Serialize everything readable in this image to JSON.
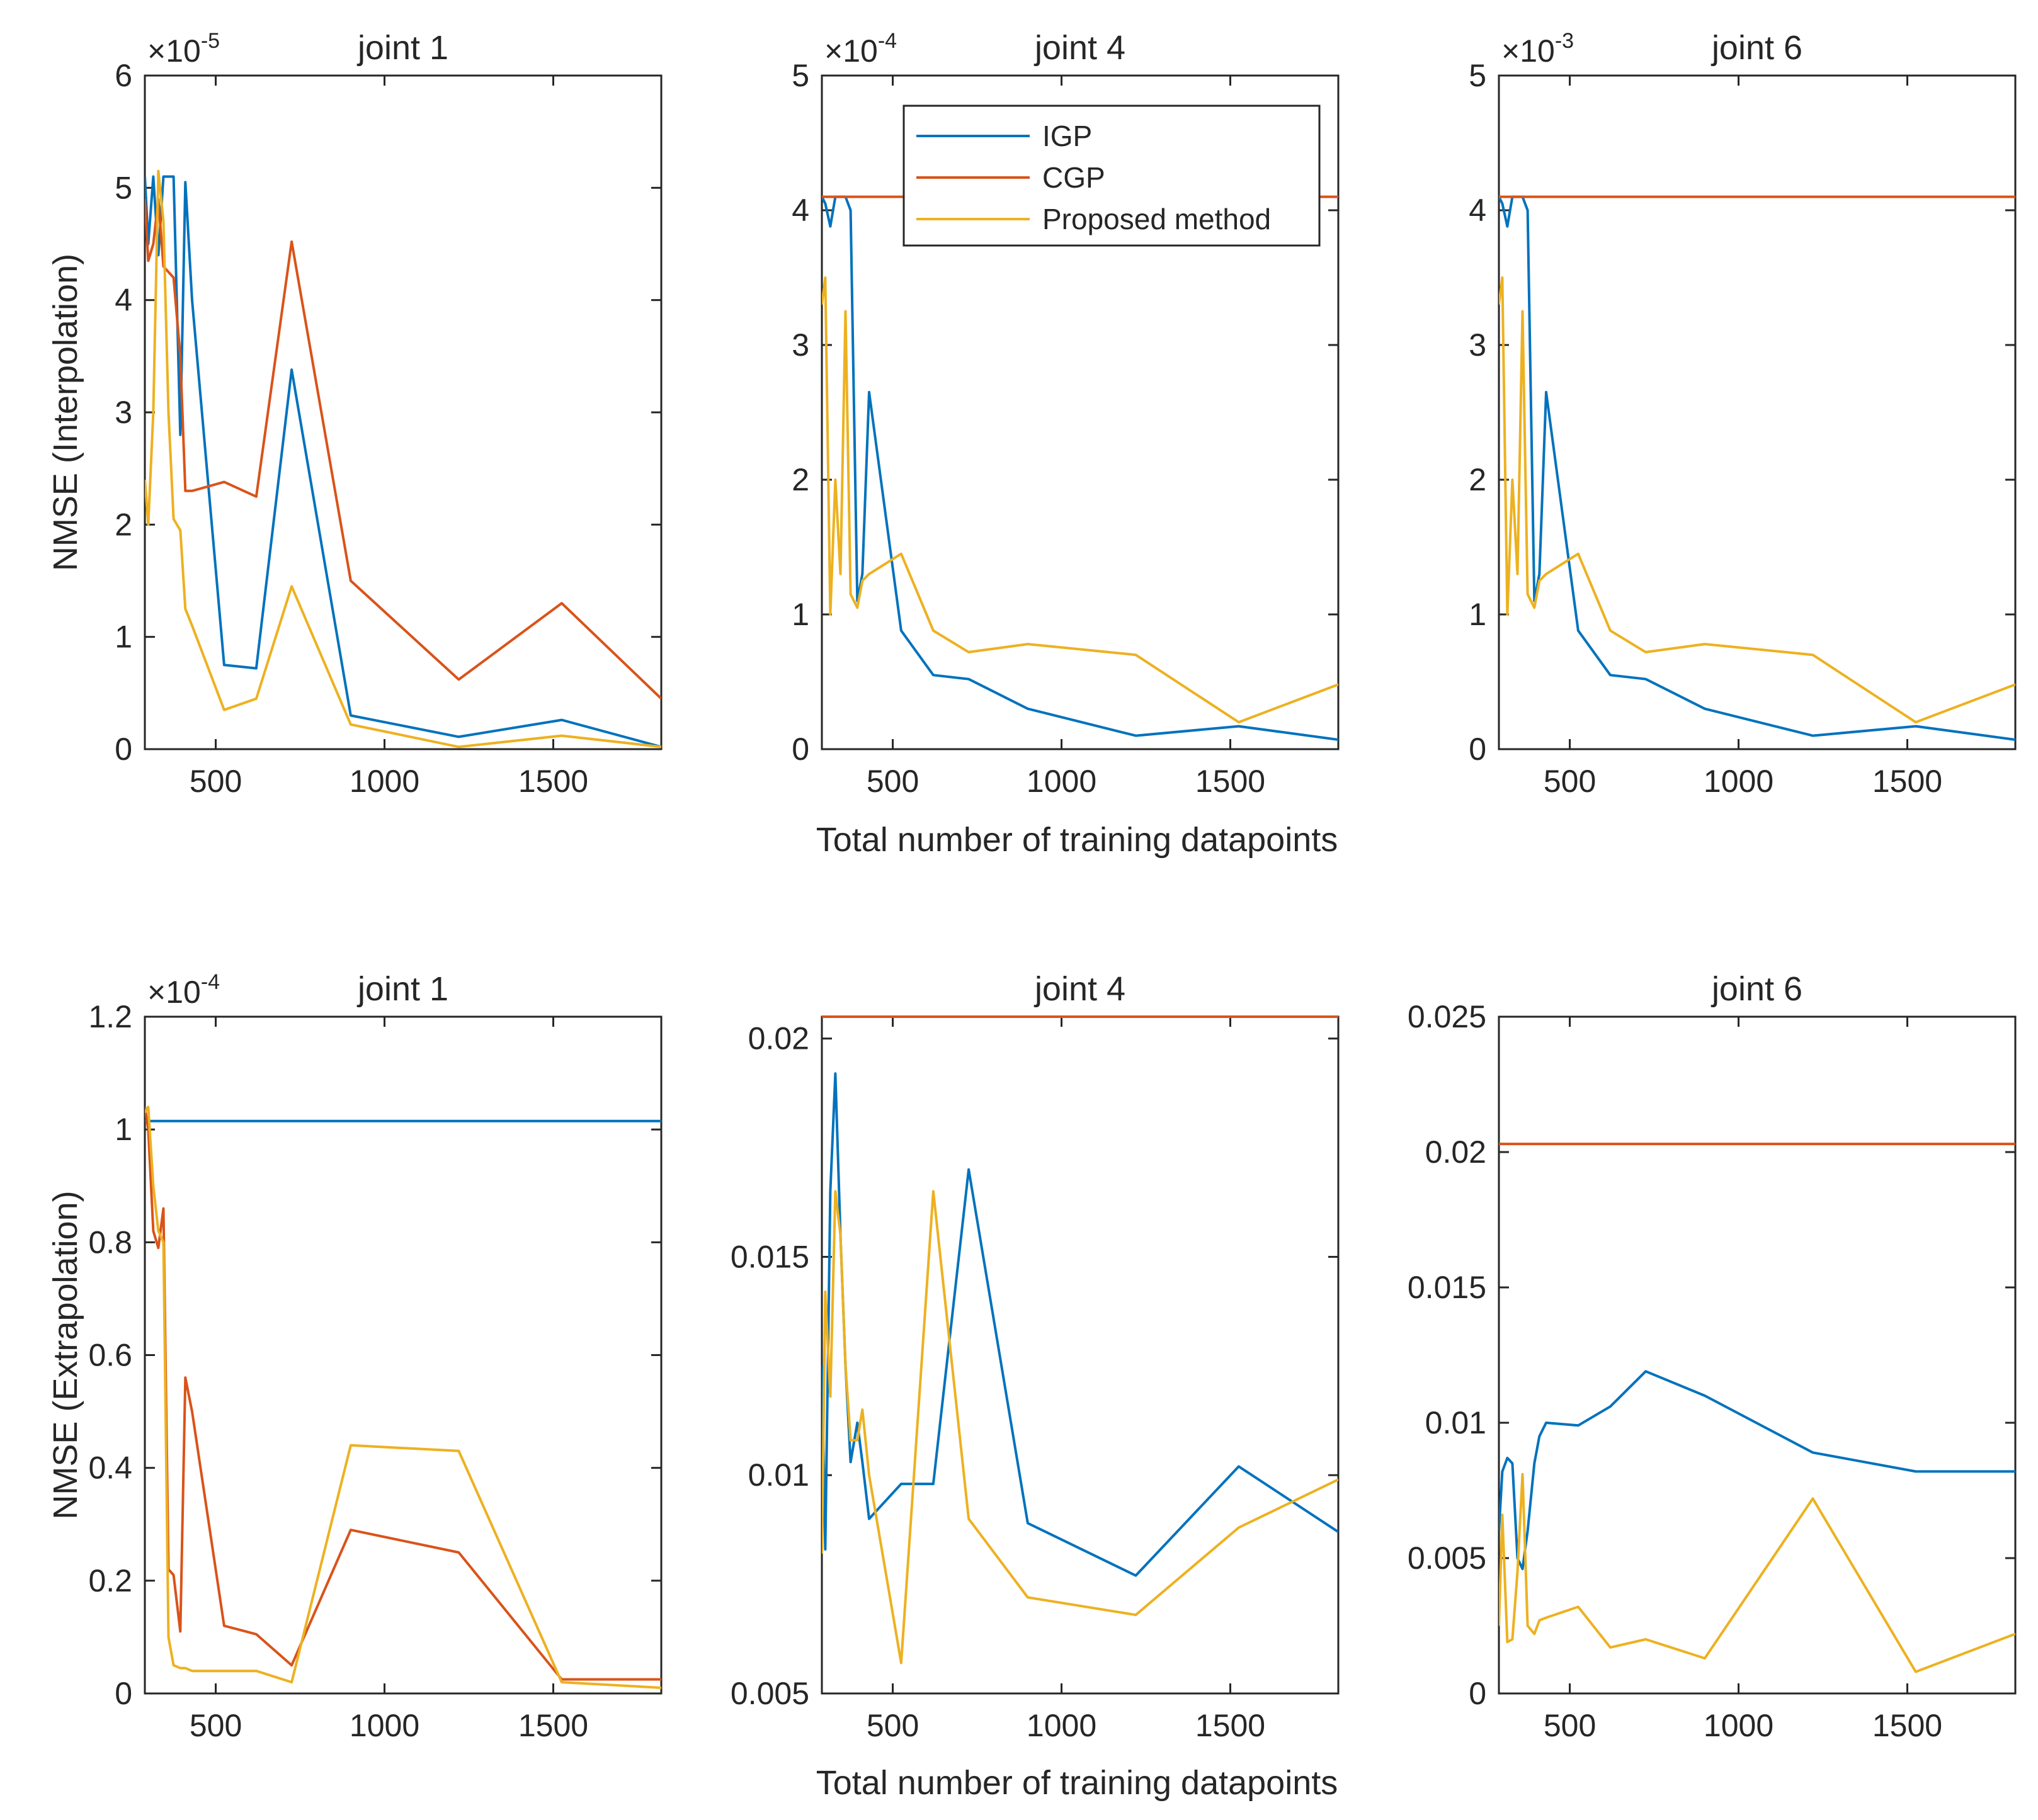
{
  "figure": {
    "shared_xlabel_top": "Total number of training datapoints",
    "shared_xlabel_bottom": "Total number of training datapoints",
    "colors": {
      "IGP": "#0072BD",
      "CGP": "#D95319",
      "Proposed method": "#EDB120"
    },
    "legend": [
      "IGP",
      "CGP",
      "Proposed method"
    ]
  },
  "chart_data": [
    {
      "type": "line",
      "title": "joint 1",
      "ylabel": "NMSE (Interpolation)",
      "xlabel": "",
      "xlim": [
        290,
        1820
      ],
      "ylim": [
        0,
        6
      ],
      "multiplier": "×10",
      "multiplier_exp": "-5",
      "xticks": [
        500,
        1000,
        1500
      ],
      "xtick_labels": [
        "500",
        "1000",
        "1500"
      ],
      "yticks": [
        0,
        1,
        2,
        3,
        4,
        5,
        6
      ],
      "ytick_labels": [
        "0",
        "1",
        "2",
        "3",
        "4",
        "5",
        "6"
      ],
      "series": [
        {
          "name": "IGP",
          "x": [
            290,
            300,
            315,
            330,
            345,
            360,
            375,
            395,
            410,
            430,
            525,
            620,
            725,
            900,
            1220,
            1525,
            1820
          ],
          "y": [
            5.1,
            4.5,
            5.1,
            4.4,
            5.1,
            5.1,
            5.1,
            2.8,
            5.05,
            4.0,
            0.75,
            0.72,
            3.38,
            0.3,
            0.11,
            0.26,
            0.02
          ]
        },
        {
          "name": "CGP",
          "x": [
            290,
            300,
            315,
            330,
            345,
            360,
            375,
            395,
            410,
            430,
            525,
            620,
            725,
            900,
            1220,
            1525,
            1820
          ],
          "y": [
            4.9,
            4.35,
            4.5,
            4.9,
            4.3,
            4.25,
            4.2,
            3.5,
            2.3,
            2.3,
            2.38,
            2.25,
            4.52,
            1.5,
            0.62,
            1.3,
            0.45
          ]
        },
        {
          "name": "Proposed method",
          "x": [
            290,
            300,
            315,
            330,
            345,
            360,
            375,
            395,
            410,
            430,
            525,
            620,
            725,
            900,
            1220,
            1525,
            1820
          ],
          "y": [
            2.4,
            2.0,
            3.0,
            5.15,
            4.7,
            3.0,
            2.05,
            1.95,
            1.25,
            1.1,
            0.35,
            0.45,
            1.45,
            0.22,
            0.02,
            0.12,
            0.02
          ]
        }
      ],
      "legend": false
    },
    {
      "type": "line",
      "title": "joint 4",
      "ylabel": "",
      "xlabel": "",
      "xlim": [
        290,
        1820
      ],
      "ylim": [
        0,
        5
      ],
      "multiplier": "×10",
      "multiplier_exp": "-4",
      "xticks": [
        500,
        1000,
        1500
      ],
      "xtick_labels": [
        "500",
        "1000",
        "1500"
      ],
      "yticks": [
        0,
        1,
        2,
        3,
        4,
        5
      ],
      "ytick_labels": [
        "0",
        "1",
        "2",
        "3",
        "4",
        "5"
      ],
      "series": [
        {
          "name": "IGP",
          "x": [
            290,
            300,
            315,
            330,
            345,
            360,
            375,
            395,
            410,
            430,
            525,
            620,
            725,
            900,
            1220,
            1525,
            1820
          ],
          "y": [
            4.1,
            4.05,
            3.88,
            4.1,
            4.1,
            4.1,
            4.0,
            1.1,
            1.3,
            2.65,
            0.88,
            0.55,
            0.52,
            0.3,
            0.1,
            0.17,
            0.07
          ]
        },
        {
          "name": "CGP",
          "x": [
            290,
            1820
          ],
          "y": [
            4.1,
            4.1
          ]
        },
        {
          "name": "Proposed method",
          "x": [
            290,
            300,
            315,
            330,
            345,
            360,
            375,
            395,
            410,
            430,
            525,
            620,
            725,
            900,
            1220,
            1525,
            1820
          ],
          "y": [
            3.3,
            3.5,
            1.0,
            2.0,
            1.3,
            3.25,
            1.15,
            1.05,
            1.25,
            1.3,
            1.45,
            0.88,
            0.72,
            0.78,
            0.7,
            0.2,
            0.48
          ]
        }
      ],
      "legend": true
    },
    {
      "type": "line",
      "title": "joint 6",
      "ylabel": "",
      "xlabel": "",
      "xlim": [
        290,
        1820
      ],
      "ylim": [
        0,
        5
      ],
      "multiplier": "×10",
      "multiplier_exp": "-3",
      "xticks": [
        500,
        1000,
        1500
      ],
      "xtick_labels": [
        "500",
        "1000",
        "1500"
      ],
      "yticks": [
        0,
        1,
        2,
        3,
        4,
        5
      ],
      "ytick_labels": [
        "0",
        "1",
        "2",
        "3",
        "4",
        "5"
      ],
      "series": [
        {
          "name": "IGP",
          "x": [
            290,
            300,
            315,
            330,
            345,
            360,
            375,
            395,
            410,
            430,
            525,
            620,
            725,
            900,
            1220,
            1525,
            1820
          ],
          "y": [
            4.1,
            4.05,
            3.88,
            4.1,
            4.1,
            4.1,
            4.0,
            1.1,
            1.3,
            2.65,
            0.88,
            0.55,
            0.52,
            0.3,
            0.1,
            0.17,
            0.07
          ]
        },
        {
          "name": "CGP",
          "x": [
            290,
            1820
          ],
          "y": [
            4.1,
            4.1
          ]
        },
        {
          "name": "Proposed method",
          "x": [
            290,
            300,
            315,
            330,
            345,
            360,
            375,
            395,
            410,
            430,
            525,
            620,
            725,
            900,
            1220,
            1525,
            1820
          ],
          "y": [
            3.3,
            3.5,
            1.0,
            2.0,
            1.3,
            3.25,
            1.15,
            1.05,
            1.25,
            1.3,
            1.45,
            0.88,
            0.72,
            0.78,
            0.7,
            0.2,
            0.48
          ]
        }
      ],
      "legend": false
    },
    {
      "type": "line",
      "title": "joint 1",
      "ylabel": "NMSE (Extrapolation)",
      "xlabel": "",
      "xlim": [
        290,
        1820
      ],
      "ylim": [
        0,
        1.2
      ],
      "multiplier": "×10",
      "multiplier_exp": "-4",
      "xticks": [
        500,
        1000,
        1500
      ],
      "xtick_labels": [
        "500",
        "1000",
        "1500"
      ],
      "yticks": [
        0,
        0.2,
        0.4,
        0.6,
        0.8,
        1,
        1.2
      ],
      "ytick_labels": [
        "0",
        "0.2",
        "0.4",
        "0.6",
        "0.8",
        "1",
        "1.2"
      ],
      "series": [
        {
          "name": "IGP",
          "x": [
            290,
            1820
          ],
          "y": [
            1.015,
            1.015
          ]
        },
        {
          "name": "CGP",
          "x": [
            290,
            300,
            315,
            330,
            345,
            360,
            375,
            395,
            410,
            430,
            525,
            620,
            725,
            900,
            1220,
            1525,
            1820
          ],
          "y": [
            1.04,
            1.0,
            0.82,
            0.79,
            0.86,
            0.22,
            0.21,
            0.11,
            0.56,
            0.5,
            0.12,
            0.105,
            0.05,
            0.29,
            0.25,
            0.025,
            0.025
          ]
        },
        {
          "name": "Proposed method",
          "x": [
            290,
            300,
            315,
            330,
            345,
            360,
            375,
            395,
            410,
            430,
            525,
            620,
            725,
            900,
            1220,
            1525,
            1820
          ],
          "y": [
            1.03,
            1.04,
            0.9,
            0.82,
            0.8,
            0.1,
            0.05,
            0.045,
            0.045,
            0.04,
            0.04,
            0.04,
            0.02,
            0.44,
            0.43,
            0.02,
            0.01
          ]
        }
      ],
      "legend": false
    },
    {
      "type": "line",
      "title": "joint 4",
      "ylabel": "",
      "xlabel": "",
      "xlim": [
        290,
        1820
      ],
      "ylim": [
        0.005,
        0.0205
      ],
      "multiplier": "",
      "multiplier_exp": "",
      "xticks": [
        500,
        1000,
        1500
      ],
      "xtick_labels": [
        "500",
        "1000",
        "1500"
      ],
      "yticks": [
        0.005,
        0.01,
        0.015,
        0.02
      ],
      "ytick_labels": [
        "0.005",
        "0.01",
        "0.015",
        "0.02"
      ],
      "series": [
        {
          "name": "IGP",
          "x": [
            290,
            300,
            315,
            330,
            345,
            360,
            375,
            395,
            410,
            430,
            525,
            620,
            725,
            900,
            1220,
            1525,
            1820
          ],
          "y": [
            0.0125,
            0.0083,
            0.0165,
            0.0192,
            0.0155,
            0.0125,
            0.0103,
            0.0112,
            0.0103,
            0.009,
            0.0098,
            0.0098,
            0.017,
            0.0089,
            0.0077,
            0.0102,
            0.0087
          ]
        },
        {
          "name": "CGP",
          "x": [
            290,
            1820
          ],
          "y": [
            0.0205,
            0.0205
          ]
        },
        {
          "name": "Proposed method",
          "x": [
            290,
            300,
            315,
            330,
            345,
            360,
            375,
            395,
            410,
            430,
            525,
            620,
            725,
            900,
            1220,
            1525,
            1820
          ],
          "y": [
            0.0082,
            0.0142,
            0.0118,
            0.0165,
            0.0155,
            0.0125,
            0.0108,
            0.0108,
            0.0115,
            0.01,
            0.0057,
            0.0165,
            0.009,
            0.0072,
            0.0068,
            0.0088,
            0.0099
          ]
        }
      ],
      "legend": false
    },
    {
      "type": "line",
      "title": "joint 6",
      "ylabel": "",
      "xlabel": "",
      "xlim": [
        290,
        1820
      ],
      "ylim": [
        0,
        0.025
      ],
      "multiplier": "",
      "multiplier_exp": "",
      "xticks": [
        500,
        1000,
        1500
      ],
      "xtick_labels": [
        "500",
        "1000",
        "1500"
      ],
      "yticks": [
        0,
        0.005,
        0.01,
        0.015,
        0.02,
        0.025
      ],
      "ytick_labels": [
        "0",
        "0.005",
        "0.01",
        "0.015",
        "0.02",
        "0.025"
      ],
      "series": [
        {
          "name": "IGP",
          "x": [
            290,
            300,
            315,
            330,
            345,
            360,
            375,
            395,
            410,
            430,
            525,
            620,
            725,
            900,
            1220,
            1525,
            1820
          ],
          "y": [
            0.006,
            0.0082,
            0.0087,
            0.0085,
            0.005,
            0.0046,
            0.006,
            0.0085,
            0.0095,
            0.01,
            0.0099,
            0.0106,
            0.0119,
            0.011,
            0.0089,
            0.0082,
            0.0082
          ]
        },
        {
          "name": "CGP",
          "x": [
            290,
            1820
          ],
          "y": [
            0.0203,
            0.0203
          ]
        },
        {
          "name": "Proposed method",
          "x": [
            290,
            300,
            315,
            330,
            345,
            360,
            375,
            395,
            410,
            430,
            525,
            620,
            725,
            900,
            1220,
            1525,
            1820
          ],
          "y": [
            0.0025,
            0.0066,
            0.0019,
            0.002,
            0.0045,
            0.0081,
            0.0025,
            0.0022,
            0.0027,
            0.0028,
            0.0032,
            0.0017,
            0.002,
            0.0013,
            0.0072,
            0.0008,
            0.0022
          ]
        }
      ],
      "legend": false
    }
  ]
}
